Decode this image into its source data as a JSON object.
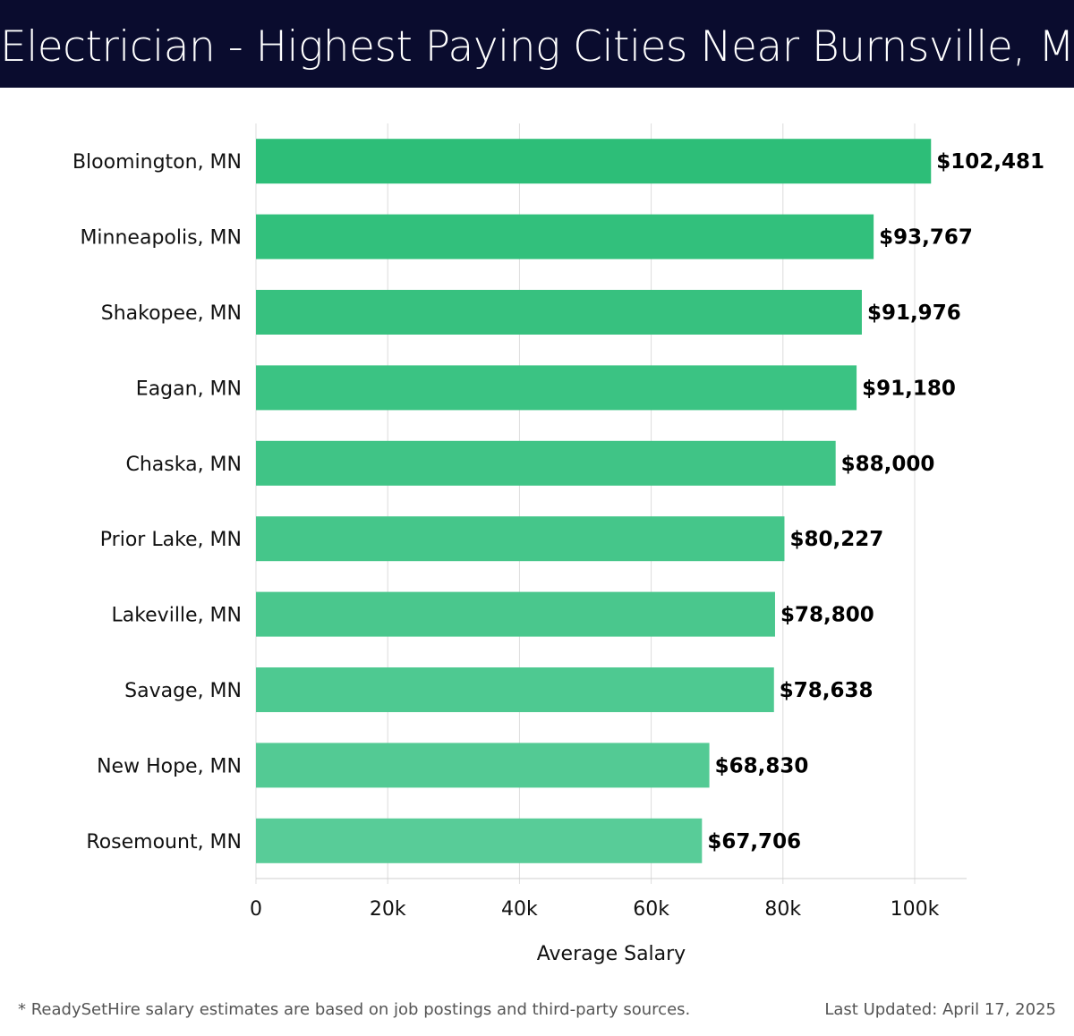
{
  "header": {
    "title": "Electrician - Highest Paying Cities Near Burnsville, MN"
  },
  "chart_data": {
    "type": "bar",
    "orientation": "horizontal",
    "title": "Electrician - Highest Paying Cities Near Burnsville, MN",
    "categories": [
      "Bloomington, MN",
      "Minneapolis, MN",
      "Shakopee, MN",
      "Eagan, MN",
      "Chaska, MN",
      "Prior Lake, MN",
      "Lakeville, MN",
      "Savage, MN",
      "New Hope, MN",
      "Rosemount, MN"
    ],
    "values": [
      102481,
      93767,
      91976,
      91180,
      88000,
      80227,
      78800,
      78638,
      68830,
      67706
    ],
    "value_labels": [
      "$102,481",
      "$93,767",
      "$91,976",
      "$91,180",
      "$88,000",
      "$80,227",
      "$78,800",
      "$78,638",
      "$68,830",
      "$67,706"
    ],
    "xlabel": "Average Salary",
    "ylabel": "",
    "xlim": [
      0,
      108000
    ],
    "xticks": [
      0,
      20000,
      40000,
      60000,
      80000,
      100000
    ],
    "xtick_labels": [
      "0",
      "20k",
      "40k",
      "60k",
      "80k",
      "100k"
    ],
    "grid": true,
    "colors": {
      "top": "#2dbe78",
      "bottom": "#58cc98"
    }
  },
  "footer": {
    "note": "* ReadySetHire salary estimates are based on job postings and third-party sources.",
    "updated": "Last Updated: April 17, 2025"
  }
}
